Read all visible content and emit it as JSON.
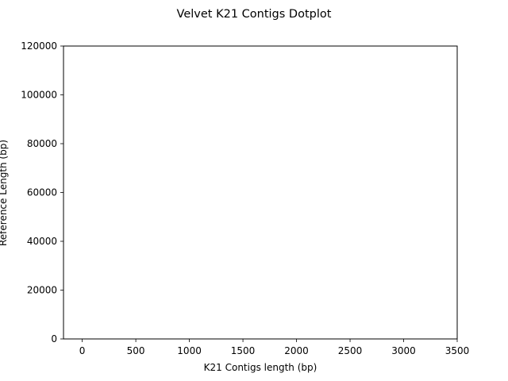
{
  "chart_data": {
    "type": "scatter",
    "title": "Velvet K21 Contigs Dotplot",
    "xlabel": "K21 Contigs length (bp)",
    "ylabel": "Reference Length (bp)",
    "xlim": [
      -175,
      3500
    ],
    "ylim": [
      0,
      120000
    ],
    "xticks": [
      0,
      500,
      1000,
      1500,
      2000,
      2500,
      3000,
      3500
    ],
    "yticks": [
      0,
      20000,
      40000,
      60000,
      80000,
      100000,
      120000
    ],
    "grid": false,
    "series": [
      {
        "points": []
      }
    ]
  }
}
